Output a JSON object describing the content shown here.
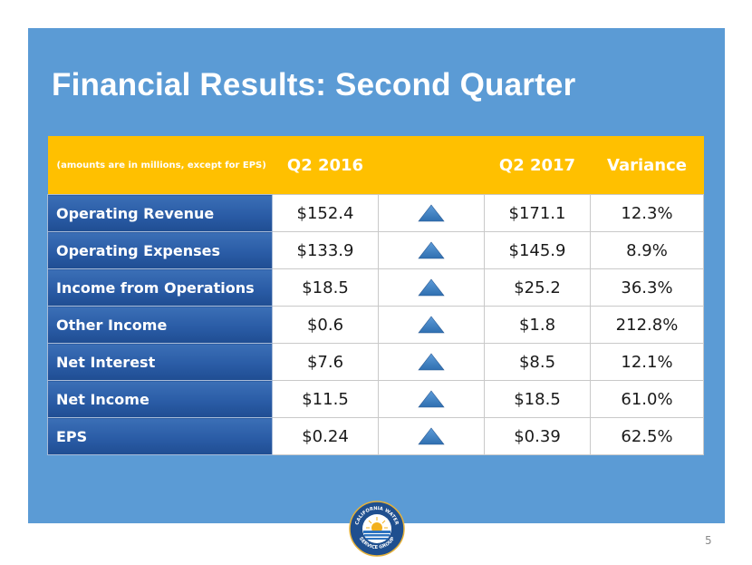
{
  "slide": {
    "title": "Financial Results: Second Quarter",
    "page_number": "5",
    "colors": {
      "panel": "#5b9bd5",
      "header": "#ffc000",
      "metric_cell": "#2a5ca6",
      "triangle": "#2f6fb0"
    }
  },
  "table": {
    "headers": {
      "note": "(amounts are in millions, except for EPS)",
      "q2_2016": "Q2 2016",
      "change": "",
      "q2_2017": "Q2 2017",
      "variance": "Variance"
    },
    "change_icon": "up-triangle-icon",
    "rows": [
      {
        "metric": "Operating Revenue",
        "q2_2016": "$152.4",
        "q2_2017": "$171.1",
        "variance": "12.3%"
      },
      {
        "metric": "Operating Expenses",
        "q2_2016": "$133.9",
        "q2_2017": "$145.9",
        "variance": "8.9%"
      },
      {
        "metric": "Income from Operations",
        "q2_2016": "$18.5",
        "q2_2017": "$25.2",
        "variance": "36.3%"
      },
      {
        "metric": "Other Income",
        "q2_2016": "$0.6",
        "q2_2017": "$1.8",
        "variance": "212.8%"
      },
      {
        "metric": "Net Interest",
        "q2_2016": "$7.6",
        "q2_2017": "$8.5",
        "variance": "12.1%"
      },
      {
        "metric": "Net Income",
        "q2_2016": "$11.5",
        "q2_2017": "$18.5",
        "variance": "61.0%"
      },
      {
        "metric": "EPS",
        "q2_2016": "$0.24",
        "q2_2017": "$0.39",
        "variance": "62.5%"
      }
    ]
  },
  "logo": {
    "text_top": "CALIFORNIA WATER",
    "text_bottom": "SERVICE GROUP",
    "icon": "sun-over-water-logo"
  }
}
